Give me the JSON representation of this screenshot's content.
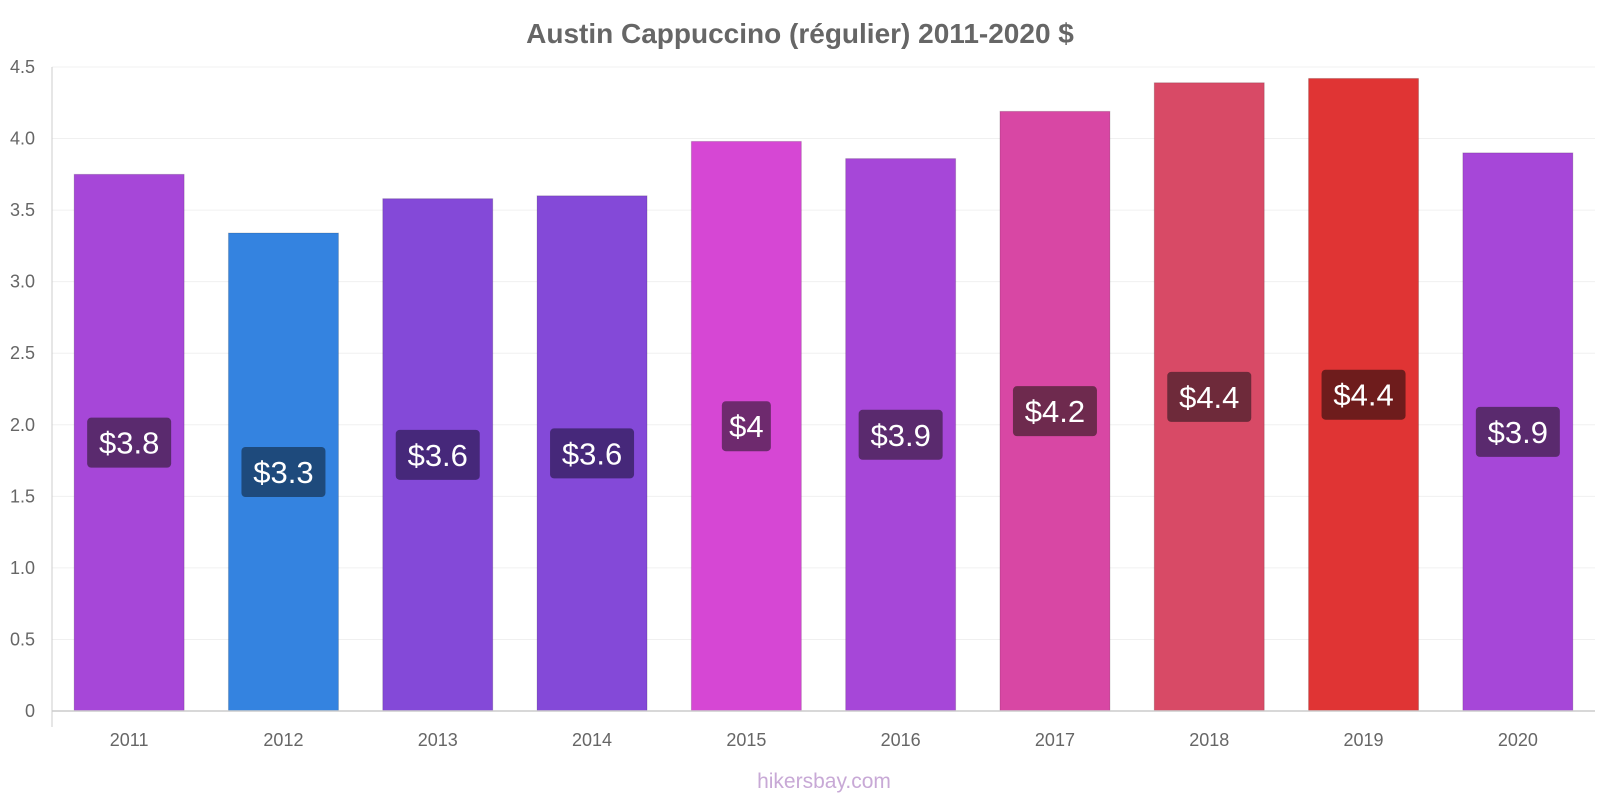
{
  "chart_data": {
    "type": "bar",
    "title": "Austin Cappuccino (régulier) 2011-2020 $",
    "categories": [
      "2011",
      "2012",
      "2013",
      "2014",
      "2015",
      "2016",
      "2017",
      "2018",
      "2019",
      "2020"
    ],
    "values": [
      3.75,
      3.34,
      3.58,
      3.6,
      3.98,
      3.86,
      4.19,
      4.39,
      4.42,
      3.9
    ],
    "value_labels": [
      "$3.8",
      "$3.3",
      "$3.6",
      "$3.6",
      "$4",
      "$3.9",
      "$4.2",
      "$4.4",
      "$4.4",
      "$3.9"
    ],
    "colors": [
      "#a647d8",
      "#3483e0",
      "#8449d8",
      "#8449d8",
      "#d647d4",
      "#a647d8",
      "#d847a4",
      "#d84a66",
      "#e03434",
      "#a647d8"
    ],
    "label_colors": [
      "#5a2a6e",
      "#1e4a7c",
      "#46287a",
      "#46287a",
      "#6e2a6e",
      "#5a2a6e",
      "#6e2a4e",
      "#6e2a3a",
      "#6e1c1c",
      "#5a2a6e"
    ],
    "yticks": [
      "0",
      "0.5",
      "1.0",
      "1.5",
      "2.0",
      "2.5",
      "3.0",
      "3.5",
      "4.0",
      "4.5"
    ],
    "ylim": [
      0,
      4.5
    ],
    "xlabel": "",
    "ylabel": "",
    "grid": true,
    "legend": "none"
  },
  "watermark": "hikersbay.com"
}
